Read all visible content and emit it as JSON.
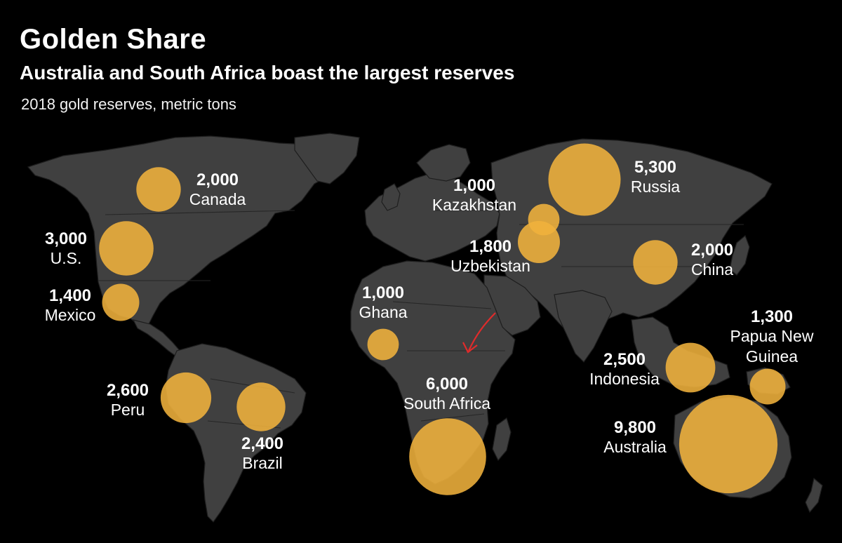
{
  "header": {
    "title": "Golden Share",
    "subtitle": "Australia and South Africa boast the largest reserves",
    "unit_label": "2018 gold reserves, metric tons"
  },
  "colors": {
    "background": "#000000",
    "land": "#404040",
    "bubble": "#f0b23c",
    "annotation_arrow": "#e02b2b"
  },
  "map": {
    "countries": [
      {
        "id": "canada",
        "name": "Canada",
        "value_label": "2,000",
        "value": 2000
      },
      {
        "id": "us",
        "name": "U.S.",
        "value_label": "3,000",
        "value": 3000
      },
      {
        "id": "mexico",
        "name": "Mexico",
        "value_label": "1,400",
        "value": 1400
      },
      {
        "id": "peru",
        "name": "Peru",
        "value_label": "2,600",
        "value": 2600
      },
      {
        "id": "brazil",
        "name": "Brazil",
        "value_label": "2,400",
        "value": 2400
      },
      {
        "id": "ghana",
        "name": "Ghana",
        "value_label": "1,000",
        "value": 1000
      },
      {
        "id": "south_africa",
        "name": "South Africa",
        "value_label": "6,000",
        "value": 6000
      },
      {
        "id": "kazakhstan",
        "name": "Kazakhstan",
        "value_label": "1,000",
        "value": 1000
      },
      {
        "id": "uzbekistan",
        "name": "Uzbekistan",
        "value_label": "1,800",
        "value": 1800
      },
      {
        "id": "russia",
        "name": "Russia",
        "value_label": "5,300",
        "value": 5300
      },
      {
        "id": "china",
        "name": "China",
        "value_label": "2,000",
        "value": 2000
      },
      {
        "id": "indonesia",
        "name": "Indonesia",
        "value_label": "2,500",
        "value": 2500
      },
      {
        "id": "png",
        "name": "Papua New Guinea",
        "name_lines": [
          "Papua New",
          "Guinea"
        ],
        "value_label": "1,300",
        "value": 1300
      },
      {
        "id": "australia",
        "name": "Australia",
        "value_label": "9,800",
        "value": 9800
      }
    ]
  }
}
